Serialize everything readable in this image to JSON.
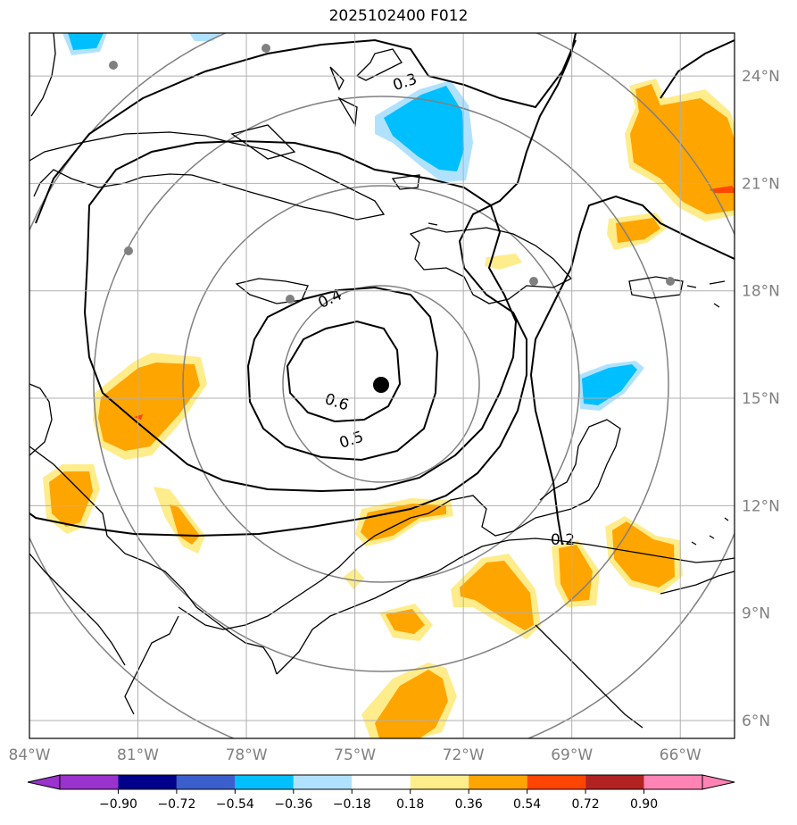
{
  "title": "2025102400 F012",
  "map": {
    "lon_ticks": [
      "84°W",
      "81°W",
      "78°W",
      "75°W",
      "72°W",
      "69°W",
      "66°W"
    ],
    "lat_ticks": [
      "24°N",
      "21°N",
      "18°N",
      "15°N",
      "12°N",
      "9°N",
      "6°N"
    ],
    "lon_range": [
      -84,
      -64.5
    ],
    "lat_range": [
      5.5,
      25.2
    ],
    "center_marker": {
      "lon": -74.2,
      "lat": 15.5
    },
    "contour_labels": [
      "0.3",
      "0.4",
      "0.6",
      "0.5",
      "0.2"
    ],
    "grid": true,
    "range_rings": true
  },
  "colorbar": {
    "labels": [
      "−0.90",
      "−0.72",
      "−0.54",
      "−0.36",
      "−0.18",
      "0.18",
      "0.36",
      "0.54",
      "0.72",
      "0.90"
    ],
    "colors": [
      "#9a32cd",
      "#00008b",
      "#3a5fcd",
      "#00bfff",
      "#b0e2ff",
      "#ffffff",
      "#ffec8b",
      "#ffa500",
      "#ff4500",
      "#b22222",
      "#ff83b4",
      "#ff83b4"
    ],
    "extend": "both"
  },
  "colors": {
    "pos_light": "#ffec8b",
    "pos_mid": "#ffa500",
    "pos_high": "#ff4500",
    "neg_light": "#b0e2ff",
    "neg_mid": "#00bfff",
    "coast": "#000000",
    "grid": "#b0b0b0",
    "rings": "#808080"
  }
}
